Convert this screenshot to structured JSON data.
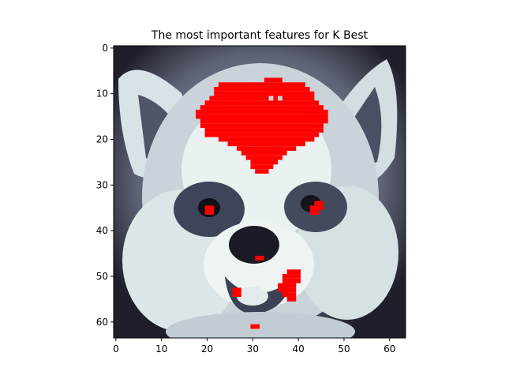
{
  "chart_data": {
    "type": "heatmap",
    "title": "The most important features for K Best",
    "xlabel": "",
    "ylabel": "",
    "xlim": [
      -0.5,
      63.5
    ],
    "ylim": [
      63.5,
      -0.5
    ],
    "x_ticks": [
      0,
      10,
      20,
      30,
      40,
      50,
      60
    ],
    "y_ticks": [
      0,
      10,
      20,
      30,
      40,
      50,
      60
    ],
    "colormap": "bone",
    "highlight_color": "#ff0000",
    "grid": false,
    "image_size": [
      64,
      64
    ],
    "description_of_image": "grayscale 64x64 dog face with red-masked selected feature pixels",
    "highlighted_regions": [
      {
        "rows": [
          7,
          28
        ],
        "cols": [
          18,
          46
        ],
        "label": "forehead"
      },
      {
        "rows": [
          35,
          36
        ],
        "cols": [
          20,
          21
        ],
        "label": "left eye"
      },
      {
        "rows": [
          34,
          37
        ],
        "cols": [
          43,
          45
        ],
        "label": "right eye"
      },
      {
        "rows": [
          46,
          47
        ],
        "cols": [
          31,
          32
        ],
        "label": "nose"
      },
      {
        "rows": [
          49,
          56
        ],
        "cols": [
          36,
          40
        ],
        "label": "chin right"
      },
      {
        "rows": [
          52,
          54
        ],
        "cols": [
          26,
          27
        ],
        "label": "chin left"
      },
      {
        "rows": [
          61,
          62
        ],
        "cols": [
          30,
          31
        ],
        "label": "bottom"
      }
    ]
  }
}
